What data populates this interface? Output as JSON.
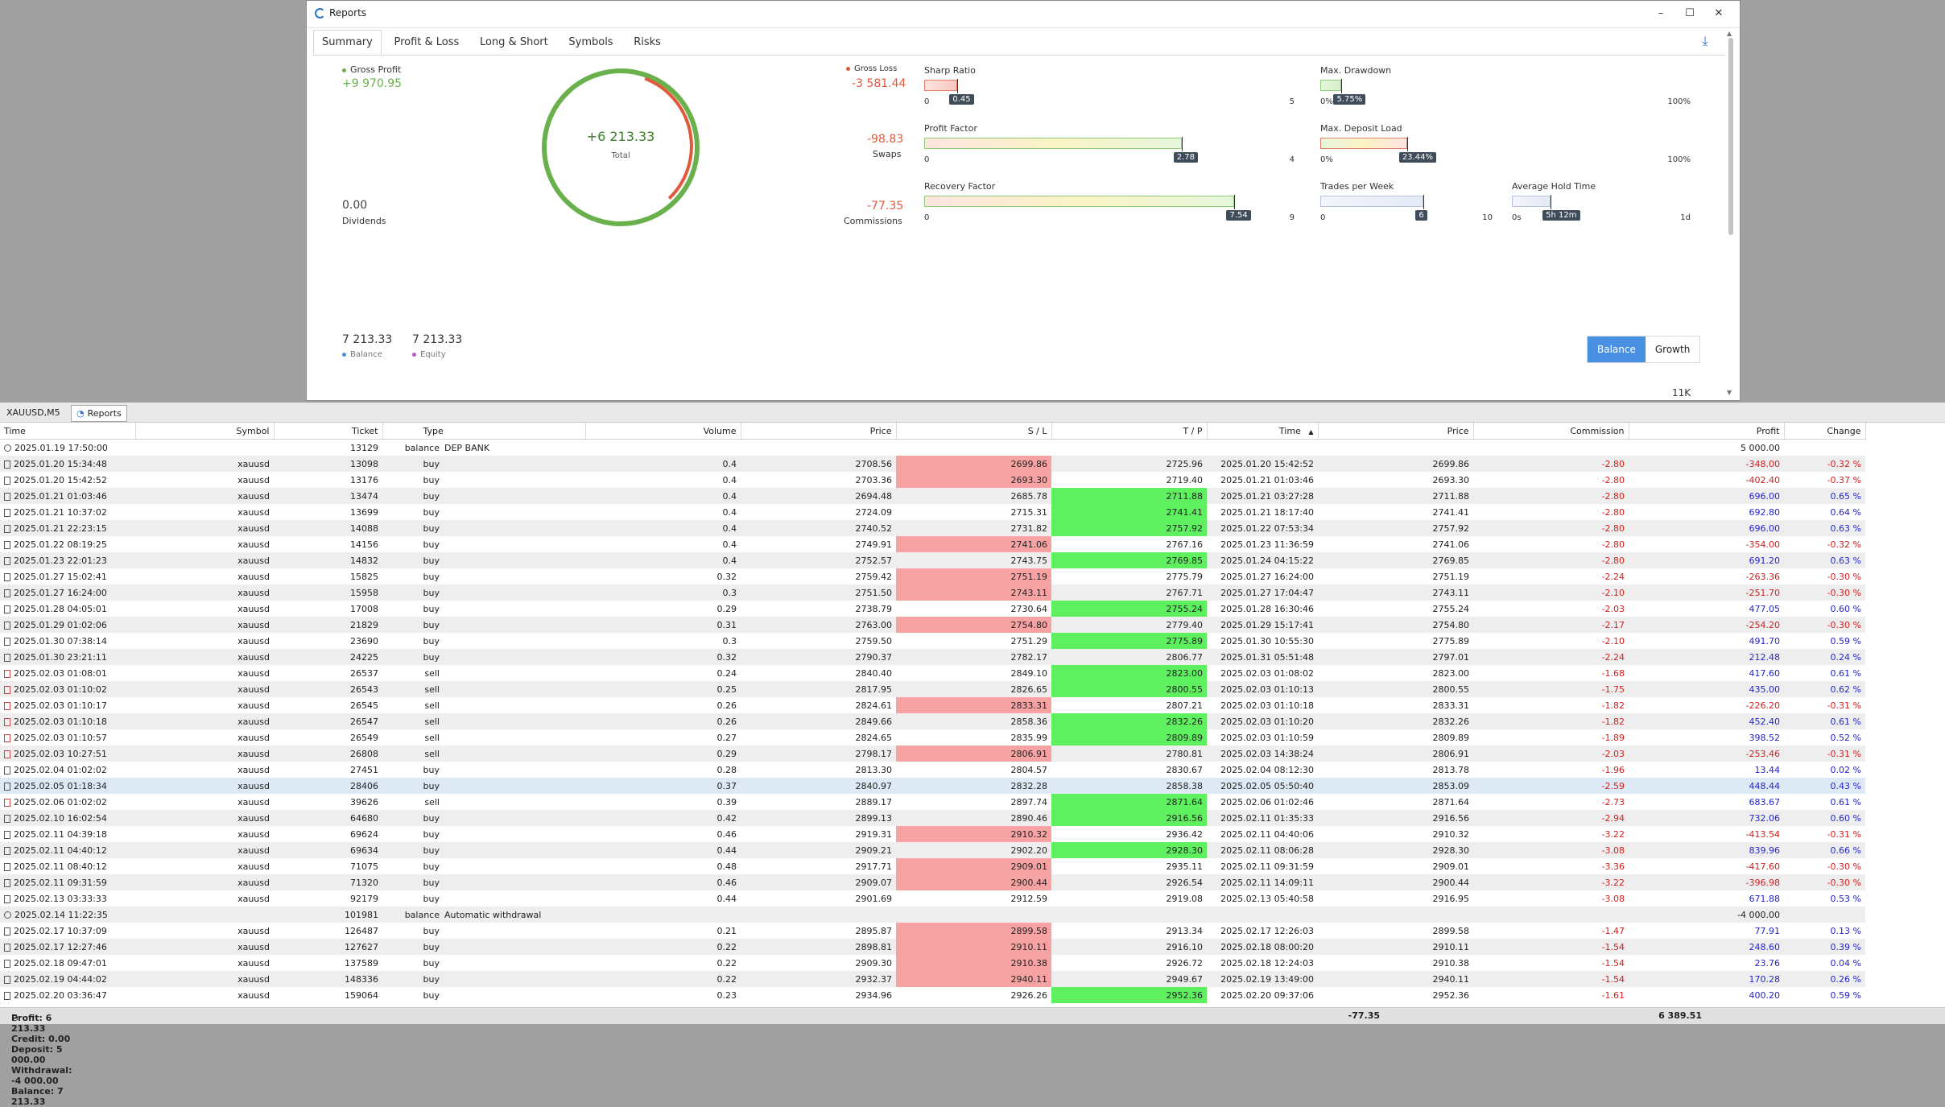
{
  "window": {
    "title": "Reports",
    "minimize": "–",
    "maximize": "☐",
    "close": "✕"
  },
  "tabs": [
    "Summary",
    "Profit & Loss",
    "Long & Short",
    "Symbols",
    "Risks"
  ],
  "summary": {
    "gross_profit_label": "Gross Profit",
    "gross_profit": "+9 970.95",
    "dividends_value": "0.00",
    "dividends_label": "Dividends",
    "total_value": "+6 213.33",
    "total_label": "Total",
    "gross_loss_label": "Gross Loss",
    "gross_loss": "-3 581.44",
    "swaps_value": "-98.83",
    "swaps_label": "Swaps",
    "commissions_value": "-77.35",
    "commissions_label": "Commissions",
    "balance_value": "7 213.33",
    "balance_label": "Balance",
    "equity_value": "7 213.33",
    "equity_label": "Equity",
    "btn_balance": "Balance",
    "btn_growth": "Growth",
    "axis_11k": "11K",
    "colors": {
      "profit": "#6ab04c",
      "loss": "#e05a3a",
      "balance": "#4a90e2",
      "equity": "#b05cc8"
    }
  },
  "meters": {
    "sharp": {
      "title": "Sharp Ratio",
      "value": "0.45",
      "min": "0",
      "max": "5",
      "fraction": 0.09
    },
    "pf": {
      "title": "Profit Factor",
      "value": "2.78",
      "min": "0",
      "max": "4",
      "fraction": 0.695
    },
    "rf": {
      "title": "Recovery Factor",
      "value": "7.54",
      "min": "0",
      "max": "9",
      "fraction": 0.838
    },
    "dd": {
      "title": "Max. Drawdown",
      "value": "5.75%",
      "min": "0%",
      "max": "100%",
      "fraction": 0.0575
    },
    "dl": {
      "title": "Max. Deposit Load",
      "value": "23.44%",
      "min": "0%",
      "max": "100%",
      "fraction": 0.2344
    },
    "tw": {
      "title": "Trades per Week",
      "value": "6",
      "min": "0",
      "max": "10",
      "fraction": 0.6
    },
    "ht": {
      "title": "Average Hold Time",
      "value": "5h 12m",
      "min": "0s",
      "max": "1d",
      "fraction": 0.217
    }
  },
  "bottom_tabs": [
    "XAUUSD,M5",
    "Reports"
  ],
  "columns": [
    "Time",
    "Symbol",
    "Ticket",
    "Type",
    "Volume",
    "Price",
    "S / L",
    "T / P",
    "Time",
    "Price",
    "Commission",
    "Profit",
    "Change"
  ],
  "rows": [
    {
      "k": "bal",
      "t": "2025.01.19 17:50:00",
      "sym": "",
      "tk": "13129",
      "ty": "balance",
      "cm": "DEP BANK",
      "profit": "5 000.00"
    },
    {
      "k": "buy",
      "t": "2025.01.20 15:34:48",
      "sym": "xauusd",
      "tk": "13098",
      "ty": "buy",
      "vol": "0.4",
      "pr": "2708.56",
      "sl": "2699.86",
      "slh": true,
      "tp": "2725.96",
      "tph": false,
      "t2": "2025.01.20 15:42:52",
      "p2": "2699.86",
      "com": "-2.80",
      "profit": "-348.00",
      "pn": true,
      "chg": "-0.32 %"
    },
    {
      "k": "buy",
      "t": "2025.01.20 15:42:52",
      "sym": "xauusd",
      "tk": "13176",
      "ty": "buy",
      "vol": "0.4",
      "pr": "2703.36",
      "sl": "2693.30",
      "slh": true,
      "tp": "2719.40",
      "tph": false,
      "t2": "2025.01.21 01:03:46",
      "p2": "2693.30",
      "com": "-2.80",
      "profit": "-402.40",
      "pn": true,
      "chg": "-0.37 %"
    },
    {
      "k": "buy",
      "t": "2025.01.21 01:03:46",
      "sym": "xauusd",
      "tk": "13474",
      "ty": "buy",
      "vol": "0.4",
      "pr": "2694.48",
      "sl": "2685.78",
      "slh": false,
      "tp": "2711.88",
      "tph": true,
      "t2": "2025.01.21 03:27:28",
      "p2": "2711.88",
      "com": "-2.80",
      "profit": "696.00",
      "pn": false,
      "chg": "0.65 %"
    },
    {
      "k": "buy",
      "t": "2025.01.21 10:37:02",
      "sym": "xauusd",
      "tk": "13699",
      "ty": "buy",
      "vol": "0.4",
      "pr": "2724.09",
      "sl": "2715.31",
      "slh": false,
      "tp": "2741.41",
      "tph": true,
      "t2": "2025.01.21 18:17:40",
      "p2": "2741.41",
      "com": "-2.80",
      "profit": "692.80",
      "pn": false,
      "chg": "0.64 %"
    },
    {
      "k": "buy",
      "t": "2025.01.21 22:23:15",
      "sym": "xauusd",
      "tk": "14088",
      "ty": "buy",
      "vol": "0.4",
      "pr": "2740.52",
      "sl": "2731.82",
      "slh": false,
      "tp": "2757.92",
      "tph": true,
      "t2": "2025.01.22 07:53:34",
      "p2": "2757.92",
      "com": "-2.80",
      "profit": "696.00",
      "pn": false,
      "chg": "0.63 %"
    },
    {
      "k": "buy",
      "t": "2025.01.22 08:19:25",
      "sym": "xauusd",
      "tk": "14156",
      "ty": "buy",
      "vol": "0.4",
      "pr": "2749.91",
      "sl": "2741.06",
      "slh": true,
      "tp": "2767.16",
      "tph": false,
      "t2": "2025.01.23 11:36:59",
      "p2": "2741.06",
      "com": "-2.80",
      "profit": "-354.00",
      "pn": true,
      "chg": "-0.32 %"
    },
    {
      "k": "buy",
      "t": "2025.01.23 22:01:23",
      "sym": "xauusd",
      "tk": "14832",
      "ty": "buy",
      "vol": "0.4",
      "pr": "2752.57",
      "sl": "2743.75",
      "slh": false,
      "tp": "2769.85",
      "tph": true,
      "t2": "2025.01.24 04:15:22",
      "p2": "2769.85",
      "com": "-2.80",
      "profit": "691.20",
      "pn": false,
      "chg": "0.63 %"
    },
    {
      "k": "buy",
      "t": "2025.01.27 15:02:41",
      "sym": "xauusd",
      "tk": "15825",
      "ty": "buy",
      "vol": "0.32",
      "pr": "2759.42",
      "sl": "2751.19",
      "slh": true,
      "tp": "2775.79",
      "tph": false,
      "t2": "2025.01.27 16:24:00",
      "p2": "2751.19",
      "com": "-2.24",
      "profit": "-263.36",
      "pn": true,
      "chg": "-0.30 %"
    },
    {
      "k": "buy",
      "t": "2025.01.27 16:24:00",
      "sym": "xauusd",
      "tk": "15958",
      "ty": "buy",
      "vol": "0.3",
      "pr": "2751.50",
      "sl": "2743.11",
      "slh": true,
      "tp": "2767.71",
      "tph": false,
      "t2": "2025.01.27 17:04:47",
      "p2": "2743.11",
      "com": "-2.10",
      "profit": "-251.70",
      "pn": true,
      "chg": "-0.30 %"
    },
    {
      "k": "buy",
      "t": "2025.01.28 04:05:01",
      "sym": "xauusd",
      "tk": "17008",
      "ty": "buy",
      "vol": "0.29",
      "pr": "2738.79",
      "sl": "2730.64",
      "slh": false,
      "tp": "2755.24",
      "tph": true,
      "t2": "2025.01.28 16:30:46",
      "p2": "2755.24",
      "com": "-2.03",
      "profit": "477.05",
      "pn": false,
      "chg": "0.60 %"
    },
    {
      "k": "buy",
      "t": "2025.01.29 01:02:06",
      "sym": "xauusd",
      "tk": "21829",
      "ty": "buy",
      "vol": "0.31",
      "pr": "2763.00",
      "sl": "2754.80",
      "slh": true,
      "tp": "2779.40",
      "tph": false,
      "t2": "2025.01.29 15:17:41",
      "p2": "2754.80",
      "com": "-2.17",
      "profit": "-254.20",
      "pn": true,
      "chg": "-0.30 %"
    },
    {
      "k": "buy",
      "t": "2025.01.30 07:38:14",
      "sym": "xauusd",
      "tk": "23690",
      "ty": "buy",
      "vol": "0.3",
      "pr": "2759.50",
      "sl": "2751.29",
      "slh": false,
      "tp": "2775.89",
      "tph": true,
      "t2": "2025.01.30 10:55:30",
      "p2": "2775.89",
      "com": "-2.10",
      "profit": "491.70",
      "pn": false,
      "chg": "0.59 %"
    },
    {
      "k": "buy",
      "t": "2025.01.30 23:21:11",
      "sym": "xauusd",
      "tk": "24225",
      "ty": "buy",
      "vol": "0.32",
      "pr": "2790.37",
      "sl": "2782.17",
      "slh": false,
      "tp": "2806.77",
      "tph": false,
      "t2": "2025.01.31 05:51:48",
      "p2": "2797.01",
      "com": "-2.24",
      "profit": "212.48",
      "pn": false,
      "chg": "0.24 %"
    },
    {
      "k": "sell",
      "t": "2025.02.03 01:08:01",
      "sym": "xauusd",
      "tk": "26537",
      "ty": "sell",
      "vol": "0.24",
      "pr": "2840.40",
      "sl": "2849.10",
      "slh": false,
      "tp": "2823.00",
      "tph": true,
      "t2": "2025.02.03 01:08:02",
      "p2": "2823.00",
      "com": "-1.68",
      "profit": "417.60",
      "pn": false,
      "chg": "0.61 %"
    },
    {
      "k": "sell",
      "t": "2025.02.03 01:10:02",
      "sym": "xauusd",
      "tk": "26543",
      "ty": "sell",
      "vol": "0.25",
      "pr": "2817.95",
      "sl": "2826.65",
      "slh": false,
      "tp": "2800.55",
      "tph": true,
      "t2": "2025.02.03 01:10:13",
      "p2": "2800.55",
      "com": "-1.75",
      "profit": "435.00",
      "pn": false,
      "chg": "0.62 %"
    },
    {
      "k": "sell",
      "t": "2025.02.03 01:10:17",
      "sym": "xauusd",
      "tk": "26545",
      "ty": "sell",
      "vol": "0.26",
      "pr": "2824.61",
      "sl": "2833.31",
      "slh": true,
      "tp": "2807.21",
      "tph": false,
      "t2": "2025.02.03 01:10:18",
      "p2": "2833.31",
      "com": "-1.82",
      "profit": "-226.20",
      "pn": true,
      "chg": "-0.31 %"
    },
    {
      "k": "sell",
      "t": "2025.02.03 01:10:18",
      "sym": "xauusd",
      "tk": "26547",
      "ty": "sell",
      "vol": "0.26",
      "pr": "2849.66",
      "sl": "2858.36",
      "slh": false,
      "tp": "2832.26",
      "tph": true,
      "t2": "2025.02.03 01:10:20",
      "p2": "2832.26",
      "com": "-1.82",
      "profit": "452.40",
      "pn": false,
      "chg": "0.61 %"
    },
    {
      "k": "sell",
      "t": "2025.02.03 01:10:57",
      "sym": "xauusd",
      "tk": "26549",
      "ty": "sell",
      "vol": "0.27",
      "pr": "2824.65",
      "sl": "2835.99",
      "slh": false,
      "tp": "2809.89",
      "tph": true,
      "t2": "2025.02.03 01:10:59",
      "p2": "2809.89",
      "com": "-1.89",
      "profit": "398.52",
      "pn": false,
      "chg": "0.52 %"
    },
    {
      "k": "sell",
      "t": "2025.02.03 10:27:51",
      "sym": "xauusd",
      "tk": "26808",
      "ty": "sell",
      "vol": "0.29",
      "pr": "2798.17",
      "sl": "2806.91",
      "slh": true,
      "tp": "2780.81",
      "tph": false,
      "t2": "2025.02.03 14:38:24",
      "p2": "2806.91",
      "com": "-2.03",
      "profit": "-253.46",
      "pn": true,
      "chg": "-0.31 %"
    },
    {
      "k": "buy",
      "t": "2025.02.04 01:02:02",
      "sym": "xauusd",
      "tk": "27451",
      "ty": "buy",
      "vol": "0.28",
      "pr": "2813.30",
      "sl": "2804.57",
      "slh": false,
      "tp": "2830.67",
      "tph": false,
      "t2": "2025.02.04 08:12:30",
      "p2": "2813.78",
      "com": "-1.96",
      "profit": "13.44",
      "pn": false,
      "chg": "0.02 %"
    },
    {
      "k": "buy",
      "hl": true,
      "t": "2025.02.05 01:18:34",
      "sym": "xauusd",
      "tk": "28406",
      "ty": "buy",
      "vol": "0.37",
      "pr": "2840.97",
      "sl": "2832.28",
      "slh": false,
      "tp": "2858.38",
      "tph": false,
      "t2": "2025.02.05 05:50:40",
      "p2": "2853.09",
      "com": "-2.59",
      "profit": "448.44",
      "pn": false,
      "chg": "0.43 %"
    },
    {
      "k": "sell",
      "t": "2025.02.06 01:02:02",
      "sym": "xauusd",
      "tk": "39626",
      "ty": "sell",
      "vol": "0.39",
      "pr": "2889.17",
      "sl": "2897.74",
      "slh": false,
      "tp": "2871.64",
      "tph": true,
      "t2": "2025.02.06 01:02:46",
      "p2": "2871.64",
      "com": "-2.73",
      "profit": "683.67",
      "pn": false,
      "chg": "0.61 %"
    },
    {
      "k": "buy",
      "t": "2025.02.10 16:02:54",
      "sym": "xauusd",
      "tk": "64680",
      "ty": "buy",
      "vol": "0.42",
      "pr": "2899.13",
      "sl": "2890.46",
      "slh": false,
      "tp": "2916.56",
      "tph": true,
      "t2": "2025.02.11 01:35:33",
      "p2": "2916.56",
      "com": "-2.94",
      "profit": "732.06",
      "pn": false,
      "chg": "0.60 %"
    },
    {
      "k": "buy",
      "t": "2025.02.11 04:39:18",
      "sym": "xauusd",
      "tk": "69624",
      "ty": "buy",
      "vol": "0.46",
      "pr": "2919.31",
      "sl": "2910.32",
      "slh": true,
      "tp": "2936.42",
      "tph": false,
      "t2": "2025.02.11 04:40:06",
      "p2": "2910.32",
      "com": "-3.22",
      "profit": "-413.54",
      "pn": true,
      "chg": "-0.31 %"
    },
    {
      "k": "buy",
      "t": "2025.02.11 04:40:12",
      "sym": "xauusd",
      "tk": "69634",
      "ty": "buy",
      "vol": "0.44",
      "pr": "2909.21",
      "sl": "2902.20",
      "slh": false,
      "tp": "2928.30",
      "tph": true,
      "t2": "2025.02.11 08:06:28",
      "p2": "2928.30",
      "com": "-3.08",
      "profit": "839.96",
      "pn": false,
      "chg": "0.66 %"
    },
    {
      "k": "buy",
      "t": "2025.02.11 08:40:12",
      "sym": "xauusd",
      "tk": "71075",
      "ty": "buy",
      "vol": "0.48",
      "pr": "2917.71",
      "sl": "2909.01",
      "slh": true,
      "tp": "2935.11",
      "tph": false,
      "t2": "2025.02.11 09:31:59",
      "p2": "2909.01",
      "com": "-3.36",
      "profit": "-417.60",
      "pn": true,
      "chg": "-0.30 %"
    },
    {
      "k": "buy",
      "t": "2025.02.11 09:31:59",
      "sym": "xauusd",
      "tk": "71320",
      "ty": "buy",
      "vol": "0.46",
      "pr": "2909.07",
      "sl": "2900.44",
      "slh": true,
      "tp": "2926.54",
      "tph": false,
      "t2": "2025.02.11 14:09:11",
      "p2": "2900.44",
      "com": "-3.22",
      "profit": "-396.98",
      "pn": true,
      "chg": "-0.30 %"
    },
    {
      "k": "buy",
      "t": "2025.02.13 03:33:33",
      "sym": "xauusd",
      "tk": "92179",
      "ty": "buy",
      "vol": "0.44",
      "pr": "2901.69",
      "sl": "2912.59",
      "slh": false,
      "tp": "2919.08",
      "tph": false,
      "t2": "2025.02.13 05:40:58",
      "p2": "2916.95",
      "com": "-3.08",
      "profit": "671.88",
      "pn": false,
      "chg": "0.53 %"
    },
    {
      "k": "bal",
      "t": "2025.02.14 11:22:35",
      "sym": "",
      "tk": "101981",
      "ty": "balance",
      "cm": "Automatic withdrawal",
      "profit": "-4 000.00"
    },
    {
      "k": "buy",
      "t": "2025.02.17 10:37:09",
      "sym": "xauusd",
      "tk": "126487",
      "ty": "buy",
      "vol": "0.21",
      "pr": "2895.87",
      "sl": "2899.58",
      "slh": true,
      "tp": "2913.34",
      "tph": false,
      "t2": "2025.02.17 12:26:03",
      "p2": "2899.58",
      "com": "-1.47",
      "profit": "77.91",
      "pn": false,
      "chg": "0.13 %"
    },
    {
      "k": "buy",
      "t": "2025.02.17 12:27:46",
      "sym": "xauusd",
      "tk": "127627",
      "ty": "buy",
      "vol": "0.22",
      "pr": "2898.81",
      "sl": "2910.11",
      "slh": true,
      "tp": "2916.10",
      "tph": false,
      "t2": "2025.02.18 08:00:20",
      "p2": "2910.11",
      "com": "-1.54",
      "profit": "248.60",
      "pn": false,
      "chg": "0.39 %"
    },
    {
      "k": "buy",
      "t": "2025.02.18 09:47:01",
      "sym": "xauusd",
      "tk": "137589",
      "ty": "buy",
      "vol": "0.22",
      "pr": "2909.30",
      "sl": "2910.38",
      "slh": true,
      "tp": "2926.72",
      "tph": false,
      "t2": "2025.02.18 12:24:03",
      "p2": "2910.38",
      "com": "-1.54",
      "profit": "23.76",
      "pn": false,
      "chg": "0.04 %"
    },
    {
      "k": "buy",
      "t": "2025.02.19 04:44:02",
      "sym": "xauusd",
      "tk": "148336",
      "ty": "buy",
      "vol": "0.22",
      "pr": "2932.37",
      "sl": "2940.11",
      "slh": true,
      "tp": "2949.67",
      "tph": false,
      "t2": "2025.02.19 13:49:00",
      "p2": "2940.11",
      "com": "-1.54",
      "profit": "170.28",
      "pn": false,
      "chg": "0.26 %"
    },
    {
      "k": "buy",
      "t": "2025.02.20 03:36:47",
      "sym": "xauusd",
      "tk": "159064",
      "ty": "buy",
      "vol": "0.23",
      "pr": "2934.96",
      "sl": "2926.26",
      "slh": false,
      "tp": "2952.36",
      "tph": true,
      "t2": "2025.02.20 09:37:06",
      "p2": "2952.36",
      "com": "-1.61",
      "profit": "400.20",
      "pn": false,
      "chg": "0.59 %"
    }
  ],
  "footer": {
    "summary": "Profit: 6 213.33  Credit: 0.00  Deposit: 5 000.00  Withdrawal: -4 000.00  Balance: 7 213.33",
    "commission": "-77.35",
    "profit": "6 389.51"
  }
}
